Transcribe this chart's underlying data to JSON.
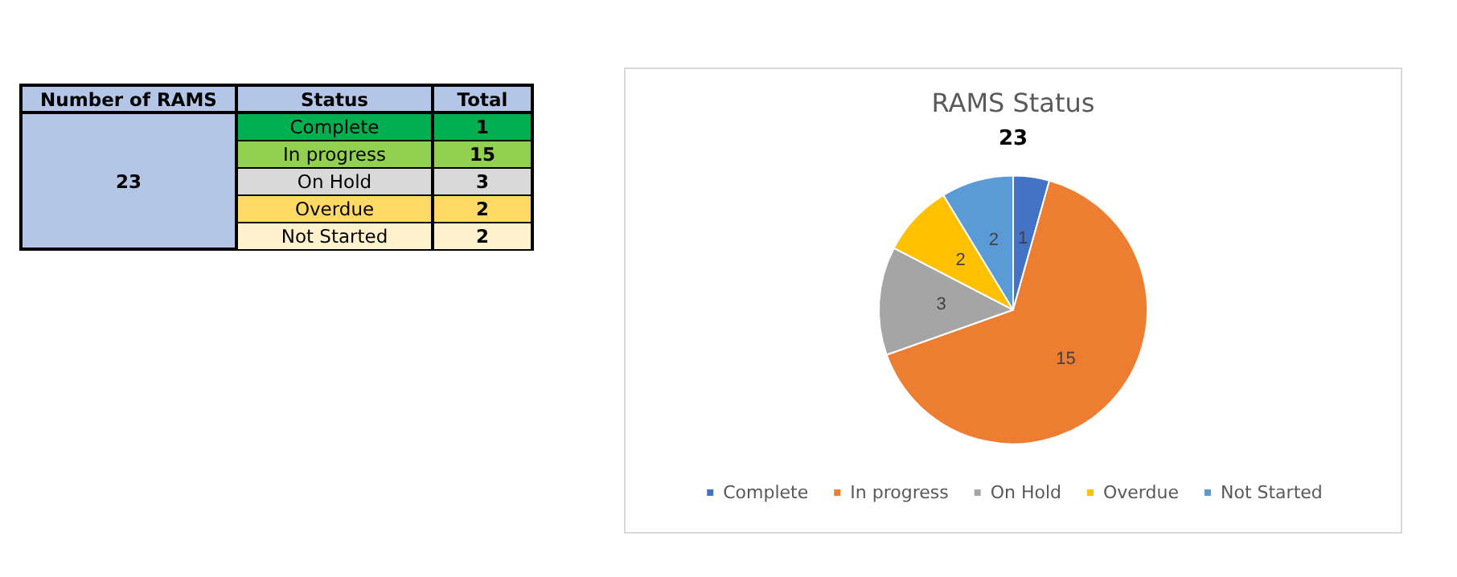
{
  "chart_data": [
    {
      "type": "other",
      "annotations": [
        "Number of RAMS",
        "Status",
        "Total",
        "23"
      ],
      "categories": [
        "Complete",
        "In progress",
        "On Hold",
        "Overdue",
        "Not Started"
      ],
      "values": [
        1,
        15,
        3,
        2,
        2
      ],
      "colors": [
        "#00b050",
        "#92d050",
        "#d9d9d9",
        "#ffd966",
        "#fff2cc"
      ],
      "data_labels": true
    },
    {
      "type": "pie",
      "title": "RAMS Status",
      "subtitle": "23",
      "categories": [
        "Complete",
        "In progress",
        "On Hold",
        "Overdue",
        "Not Started"
      ],
      "values": [
        1,
        15,
        3,
        2,
        2
      ],
      "colors": [
        "#4472c4",
        "#ed7d31",
        "#a5a5a5",
        "#ffc000",
        "#5b9bd5"
      ],
      "data_labels": true,
      "legend": "bottom"
    }
  ]
}
